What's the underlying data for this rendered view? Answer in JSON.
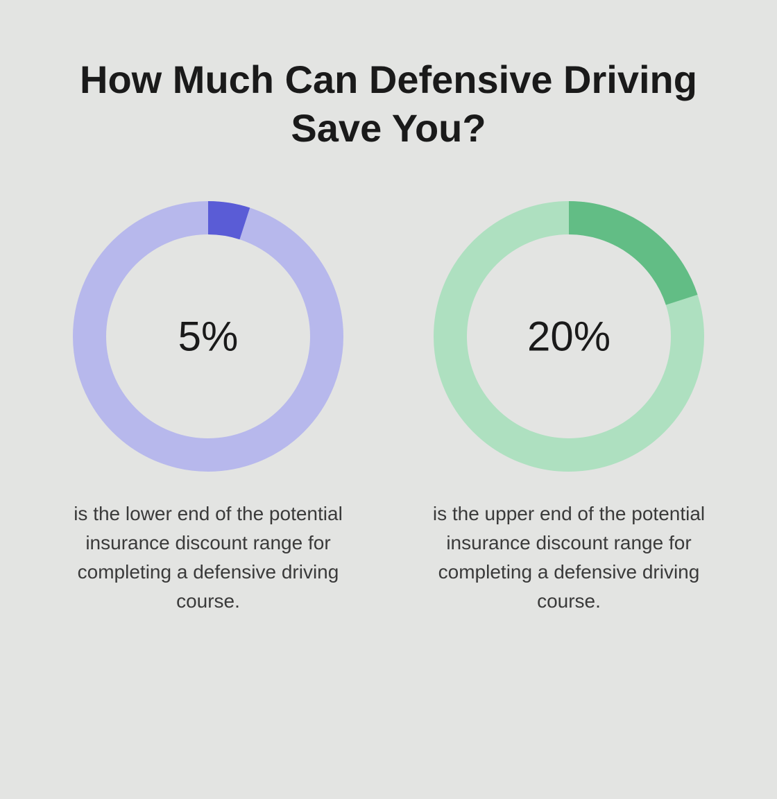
{
  "title": "How Much Can Defensive Driving Save You?",
  "title_fontsize": 56,
  "background_color": "#e3e4e2",
  "donut": {
    "size": 390,
    "stroke_width": 48,
    "start_angle_deg": -90
  },
  "center_label_fontsize": 60,
  "caption_fontsize": 28,
  "charts": [
    {
      "percent": 5,
      "center_label": "5%",
      "track_color": "#b7b8ec",
      "fill_color": "#5a5cd6",
      "caption": "is the lower end of the potential insurance discount range for completing a defensive driving course."
    },
    {
      "percent": 20,
      "center_label": "20%",
      "track_color": "#aee0c0",
      "fill_color": "#62bd85",
      "caption": "is the upper end of the potential insurance discount range for completing a defensive driving course."
    }
  ]
}
